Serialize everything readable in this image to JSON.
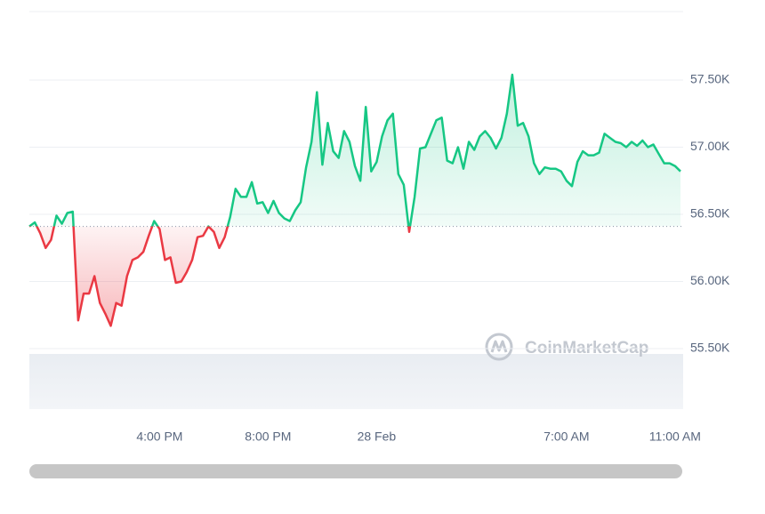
{
  "chart_data": {
    "type": "line",
    "watermark": "CoinMarketCap",
    "x": [
      -12.8,
      -12.6,
      -12.4,
      -12.2,
      -12.0,
      -11.8,
      -11.6,
      -11.4,
      -11.2,
      -11.0,
      -10.8,
      -10.6,
      -10.4,
      -10.2,
      -10.0,
      -9.8,
      -9.6,
      -9.4,
      -9.2,
      -9.0,
      -8.8,
      -8.6,
      -8.4,
      -8.2,
      -8.0,
      -7.8,
      -7.6,
      -7.4,
      -7.2,
      -7.0,
      -6.8,
      -6.6,
      -6.4,
      -6.2,
      -6.0,
      -5.8,
      -5.6,
      -5.4,
      -5.2,
      -5.0,
      -4.8,
      -4.6,
      -4.4,
      -4.2,
      -4.0,
      -3.8,
      -3.6,
      -3.4,
      -3.2,
      -3.0,
      -2.8,
      -2.6,
      -2.4,
      -2.2,
      -2.0,
      -1.8,
      -1.6,
      -1.4,
      -1.2,
      -1.0,
      -0.8,
      -0.6,
      -0.4,
      -0.2,
      0,
      0.2,
      0.4,
      0.6,
      0.8,
      1.0,
      1.2,
      1.4,
      1.6,
      1.8,
      2.0,
      2.2,
      2.4,
      2.6,
      2.8,
      3.0,
      3.2,
      3.4,
      3.6,
      3.8,
      4.0,
      4.2,
      4.4,
      4.6,
      4.8,
      5.0,
      5.2,
      5.4,
      5.6,
      5.8,
      6.0,
      6.2,
      6.4,
      6.6,
      6.8,
      7.0,
      7.2,
      7.4,
      7.6,
      7.8,
      8.0,
      8.2,
      8.4,
      8.6,
      8.8,
      9.0,
      9.2,
      9.4,
      9.6,
      9.8,
      10.0,
      10.2,
      10.4,
      10.6,
      10.8,
      11.0,
      11.2
    ],
    "values": [
      56410,
      56440,
      56360,
      56250,
      56310,
      56490,
      56430,
      56510,
      56520,
      55710,
      55910,
      55910,
      56040,
      55840,
      55760,
      55670,
      55840,
      55820,
      56040,
      56160,
      56180,
      56220,
      56340,
      56450,
      56390,
      56160,
      56180,
      55990,
      56000,
      56070,
      56160,
      56330,
      56340,
      56410,
      56370,
      56250,
      56330,
      56480,
      56690,
      56630,
      56630,
      56740,
      56580,
      56590,
      56510,
      56600,
      56510,
      56470,
      56450,
      56530,
      56590,
      56850,
      57040,
      57410,
      56870,
      57180,
      56970,
      56920,
      57120,
      57040,
      56860,
      56750,
      57300,
      56820,
      56890,
      57080,
      57200,
      57250,
      56800,
      56720,
      56370,
      56630,
      56990,
      57000,
      57100,
      57200,
      57220,
      56900,
      56880,
      57000,
      56840,
      57040,
      56980,
      57080,
      57120,
      57070,
      56990,
      57070,
      57250,
      57540,
      57160,
      57180,
      57080,
      56880,
      56800,
      56850,
      56840,
      56840,
      56820,
      56750,
      56710,
      56890,
      56970,
      56940,
      56940,
      56960,
      57100,
      57070,
      57040,
      57030,
      57000,
      57040,
      57010,
      57050,
      57000,
      57020,
      56950,
      56880,
      56880,
      56860,
      56820
    ],
    "baseline": 56410,
    "color_up": "#16c784",
    "color_down": "#ea3943",
    "xlim": [
      -12.8,
      11.3
    ],
    "xticks": [
      {
        "value": -8,
        "label": "4:00 PM"
      },
      {
        "value": -4,
        "label": "8:00 PM"
      },
      {
        "value": 0,
        "label": "28 Feb"
      },
      {
        "value": 7,
        "label": "7:00 AM"
      },
      {
        "value": 11,
        "label": "11:00 AM"
      }
    ],
    "ylim": [
      55050,
      58010
    ],
    "yticks": [
      {
        "value": 55500,
        "label": "55.50K"
      },
      {
        "value": 56000,
        "label": "56.00K"
      },
      {
        "value": 56500,
        "label": "56.50K"
      },
      {
        "value": 57000,
        "label": "57.00K"
      },
      {
        "value": 57500,
        "label": "57.50K"
      }
    ],
    "grid": true
  }
}
